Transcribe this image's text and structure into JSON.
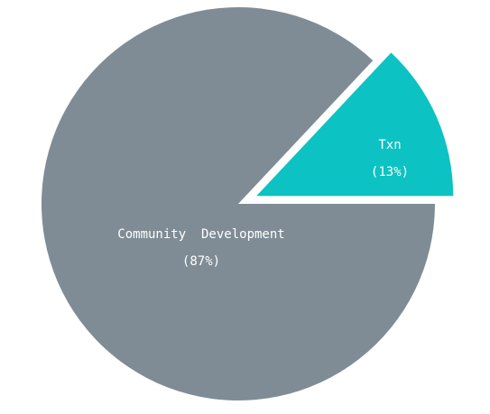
{
  "chart_data": {
    "type": "pie",
    "title": "",
    "slices": [
      {
        "label": "Community  Development",
        "percent_label": "(87%)",
        "value": 87,
        "color": "#7f8c95",
        "exploded": false
      },
      {
        "label": "Txn",
        "percent_label": "(13%)",
        "value": 13,
        "color": "#0cc2c2",
        "exploded": true
      }
    ],
    "legend": "none"
  }
}
